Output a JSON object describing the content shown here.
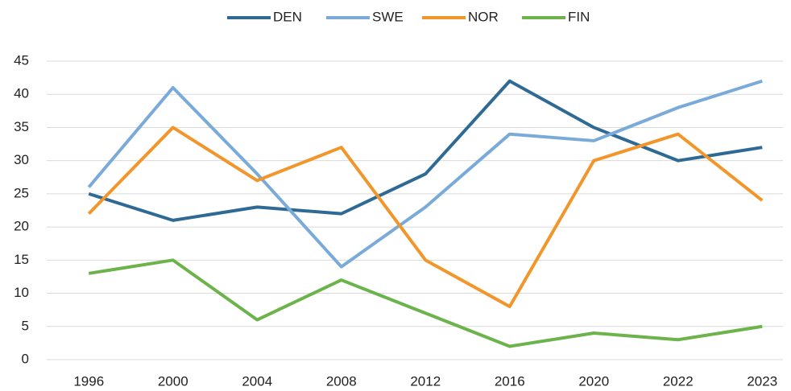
{
  "chart_data": {
    "type": "line",
    "categories": [
      "1996",
      "2000",
      "2004",
      "2008",
      "2012",
      "2016",
      "2020",
      "2022",
      "2023"
    ],
    "series": [
      {
        "name": "DEN",
        "color": "#2e6a93",
        "values": [
          25,
          21,
          23,
          22,
          28,
          42,
          35,
          30,
          32
        ]
      },
      {
        "name": "SWE",
        "color": "#7aaad8",
        "values": [
          26,
          41,
          28,
          14,
          23,
          34,
          33,
          38,
          42
        ]
      },
      {
        "name": "NOR",
        "color": "#f2962b",
        "values": [
          22,
          35,
          27,
          32,
          15,
          8,
          30,
          34,
          24
        ]
      },
      {
        "name": "FIN",
        "color": "#6bb34a",
        "values": [
          13,
          15,
          6,
          12,
          7,
          2,
          4,
          3,
          5
        ]
      }
    ],
    "ylim": [
      0,
      45
    ],
    "yticks": [
      0,
      5,
      10,
      15,
      20,
      25,
      30,
      35,
      40,
      45
    ],
    "grid": true,
    "legend": "top"
  }
}
